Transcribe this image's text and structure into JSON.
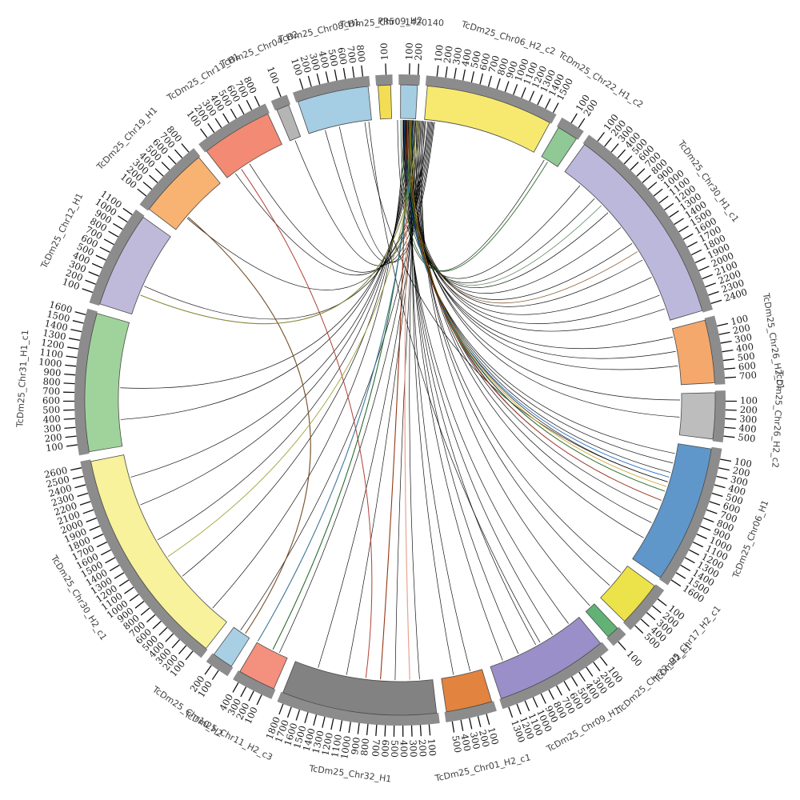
{
  "colors": {
    "background": "#ffffff",
    "rim": "#8c8c8c",
    "band_outline": "#4a4a4a",
    "tick": "#111111",
    "tick_label": "#1a1a1a",
    "name_label": "#3f3f3f",
    "link_default": "#000000"
  },
  "chart_data": {
    "type": "circos",
    "tick_interval": 100,
    "tick_unit_labels": "multiples of 100 along each chromosome arc",
    "segments": [
      {
        "label": "TcDm25_Chr09_H2",
        "color": "#f2dd55",
        "length": 150
      },
      {
        "label": "PR50_1420140",
        "color": "#a6cee3",
        "length": 200
      },
      {
        "label": "TcDm25_Chr06_H2_c2",
        "color": "#f7e96f",
        "length": 1520
      },
      {
        "label": "TcDm25_Chr22_H1_c2",
        "color": "#90c995",
        "length": 250
      },
      {
        "label": "TcDm25_Chr30_H1_c1",
        "color": "#bcb8dc",
        "length": 2450
      },
      {
        "label": "TcDm25_Chr26_H2_c1",
        "color": "#f5a86c",
        "length": 750
      },
      {
        "label": "TcDm25_Chr26_H2_c2",
        "color": "#bdbdbd",
        "length": 550
      },
      {
        "label": "TcDm25_Chr06_H1",
        "color": "#5f97cb",
        "length": 1650
      },
      {
        "label": "TcDm25_Chr17_H2_c1",
        "color": "#ece24a",
        "length": 550
      },
      {
        "label": "TcDm25_Chr22_H2_c1",
        "color": "#62b276",
        "length": 150
      },
      {
        "label": "TcDm25_Chr09_H1",
        "color": "#9a8fc8",
        "length": 1350
      },
      {
        "label": "TcDm25_Chr01_H2_c1",
        "color": "#e2833f",
        "length": 550
      },
      {
        "label": "TcDm25_Chr32_H1",
        "color": "#828282",
        "length": 1850
      },
      {
        "label": "TcDm25_Chr11_H2_c3",
        "color": "#f4907e",
        "length": 450
      },
      {
        "label": "TcDm25_Chr10_H2",
        "color": "#a9cfe5",
        "length": 250
      },
      {
        "label": "TcDm25_Chr30_H2_c1",
        "color": "#f7f29b",
        "length": 2650
      },
      {
        "label": "TcDm25_Chr31_H1_c1",
        "color": "#a0d39b",
        "length": 1650
      },
      {
        "label": "TcDm25_Chr12_H1",
        "color": "#bfbada",
        "length": 1150
      },
      {
        "label": "TcDm25_Chr19_H1",
        "color": "#f8b271",
        "length": 850
      },
      {
        "label": "TcDm25_Chr11_H1",
        "color": "#f28a74",
        "length": 850
      },
      {
        "label": "TcDm25_Chr04_H2",
        "color": "#b5b5b5",
        "length": 150
      },
      {
        "label": "TcDm25_Chr08_H1",
        "color": "#a5cde4",
        "length": 850
      }
    ],
    "links": [
      [
        0.6,
        40,
        "#000000",
        0.7
      ],
      [
        1.0,
        44,
        "#000000",
        0.7
      ],
      [
        1.4,
        48,
        "#000000",
        0.7
      ],
      [
        1.8,
        52,
        "#000000",
        0.7
      ],
      [
        2.2,
        56,
        "#000000",
        0.7
      ],
      [
        2.6,
        60,
        "#000000",
        0.7
      ],
      [
        1.2,
        64,
        "#000000",
        0.7
      ],
      [
        1.6,
        71,
        "#000000",
        0.7
      ],
      [
        2.0,
        68,
        "#000000",
        0.7
      ],
      [
        0.8,
        77,
        "#000000",
        0.7
      ],
      [
        1.2,
        80,
        "#000000",
        0.7
      ],
      [
        1.6,
        83,
        "#000000",
        0.7
      ],
      [
        2.0,
        90,
        "#000000",
        0.7
      ],
      [
        2.4,
        93.5,
        "#000000",
        0.7
      ],
      [
        0.7,
        101,
        "#000000",
        0.7
      ],
      [
        1.1,
        103,
        "#000000",
        0.7
      ],
      [
        1.5,
        105,
        "#000000",
        0.7
      ],
      [
        1.9,
        107,
        "#000000",
        0.7
      ],
      [
        2.3,
        109,
        "#000000",
        0.7
      ],
      [
        2.7,
        111,
        "#000000",
        0.7
      ],
      [
        3.1,
        113,
        "#000000",
        0.7
      ],
      [
        3.5,
        116,
        "#000000",
        0.7
      ],
      [
        3.9,
        119.5,
        "#000000",
        0.7
      ],
      [
        4.3,
        128,
        "#000000",
        0.7
      ],
      [
        4.7,
        131.5,
        "#000000",
        0.7
      ],
      [
        5.1,
        137.3,
        "#000000",
        0.7
      ],
      [
        0.9,
        143,
        "#000000",
        0.7
      ],
      [
        1.3,
        147,
        "#000000",
        0.7
      ],
      [
        1.7,
        151,
        "#000000",
        0.7
      ],
      [
        2.1,
        155,
        "#000000",
        0.7
      ],
      [
        2.5,
        158.5,
        "#000000",
        0.7
      ],
      [
        2.9,
        165.5,
        "#000000",
        0.7
      ],
      [
        3.3,
        169,
        "#000000",
        0.7
      ],
      [
        3.7,
        176,
        "#000000",
        0.7
      ],
      [
        4.1,
        181,
        "#000000",
        0.7
      ],
      [
        4.5,
        191,
        "#000000",
        0.7
      ],
      [
        4.9,
        197,
        "#000000",
        0.7
      ],
      [
        5.3,
        205.5,
        "#000000",
        0.7
      ],
      [
        5.7,
        214.7,
        "#000000",
        0.7
      ],
      [
        0.8,
        222,
        "#000000",
        0.7
      ],
      [
        1.2,
        231,
        "#000000",
        0.7
      ],
      [
        1.6,
        240,
        "#000000",
        0.7
      ],
      [
        2.0,
        248,
        "#000000",
        0.7
      ],
      [
        2.4,
        254,
        "#000000",
        0.7
      ],
      [
        2.8,
        266,
        "#000000",
        0.7
      ],
      [
        3.2,
        272.5,
        "#000000",
        0.7
      ],
      [
        5.9,
        294,
        "#000000",
        0.7
      ],
      [
        6.1,
        310.5,
        "#000000",
        0.7
      ],
      [
        6.3,
        324,
        "#000000",
        0.7
      ],
      [
        6.5,
        327.5,
        "#000000",
        0.7
      ],
      [
        6.7,
        338,
        "#000000",
        0.7
      ],
      [
        6.9,
        344.5,
        "#000000",
        0.7
      ],
      [
        7.1,
        347.5,
        "#000000",
        0.7
      ],
      [
        359.5,
        31,
        "#000000",
        0.7
      ],
      [
        352.8,
        107,
        "#000000",
        0.7
      ],
      [
        353.6,
        150,
        "#000000",
        0.7
      ],
      [
        1.5,
        184,
        "#8b2500",
        1.1
      ],
      [
        2.0,
        178,
        "#e79a86",
        1.2
      ],
      [
        325.5,
        187,
        "#a93226",
        1.0
      ],
      [
        2.4,
        207,
        "#1b5e20",
        1.1
      ],
      [
        2.8,
        210.5,
        "#2e6d8e",
        1.1
      ],
      [
        310.8,
        213.5,
        "#6e4318",
        1.1
      ],
      [
        4.0,
        292,
        "#7d7d2a",
        1.1
      ],
      [
        3.4,
        236,
        "#9a9a30",
        0.9
      ],
      [
        0.2,
        31.8,
        "#2e6b2e",
        1.0
      ],
      [
        1.0,
        106,
        "#1565c0",
        0.9
      ],
      [
        1.6,
        109,
        "#2e7d32",
        0.9
      ],
      [
        2.0,
        111,
        "#b03a2e",
        0.9
      ],
      [
        2.3,
        108,
        "#c8960c",
        0.8
      ],
      [
        1.9,
        58,
        "#7a4a20",
        0.8
      ],
      [
        2.1,
        46,
        "#3c6e3c",
        0.7
      ]
    ]
  }
}
